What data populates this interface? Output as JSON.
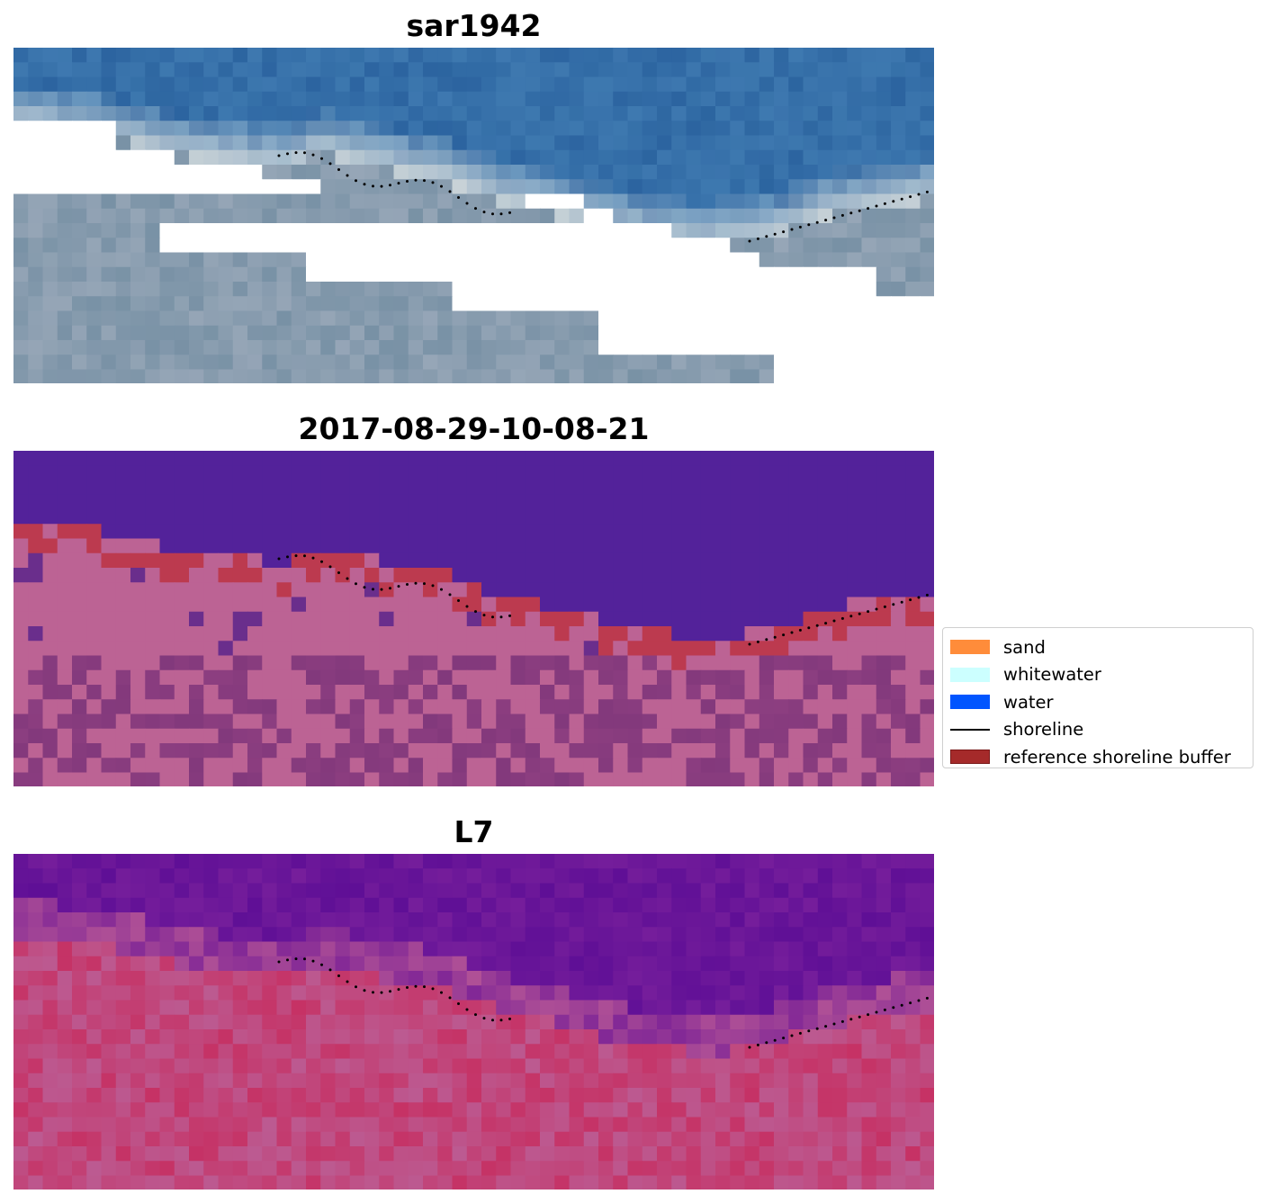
{
  "panels": [
    {
      "title": "sar1942",
      "kind": "rgb"
    },
    {
      "title": "2017-08-29-10-08-21",
      "kind": "classified"
    },
    {
      "title": "L7",
      "kind": "mndwi"
    }
  ],
  "legend": {
    "items": [
      {
        "label": "sand",
        "type": "patch",
        "color": "#FF8C3A",
        "border": "none"
      },
      {
        "label": "whitewater",
        "type": "patch",
        "color": "#CCFFFF",
        "border": "none"
      },
      {
        "label": "water",
        "type": "patch",
        "color": "#0055FF",
        "border": "none"
      },
      {
        "label": "shoreline",
        "type": "line",
        "color": "#000000"
      },
      {
        "label": "reference shoreline buffer",
        "type": "patch",
        "color": "#A52A2A",
        "border": "#7a1a1a"
      }
    ]
  }
}
